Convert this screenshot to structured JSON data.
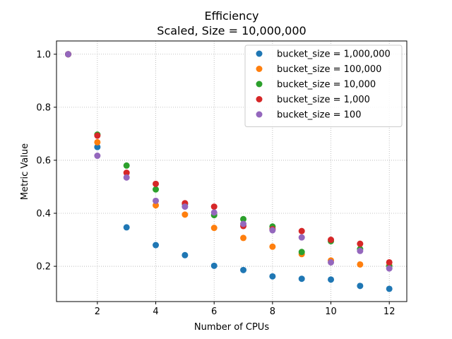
{
  "chart_data": {
    "type": "scatter",
    "title": "Efficiency",
    "subtitle": "Scaled, Size = 10,000,000",
    "xlabel": "Number of CPUs",
    "ylabel": "Metric Value",
    "xlim": [
      0.6,
      12.6
    ],
    "ylim": [
      0.067,
      1.05
    ],
    "xticks": [
      2,
      4,
      6,
      8,
      10,
      12
    ],
    "yticks": [
      0.2,
      0.4,
      0.6,
      0.8,
      1.0
    ],
    "ytick_labels": [
      "0.2",
      "0.4",
      "0.6",
      "0.8",
      "1.0"
    ],
    "grid": true,
    "legend_position": "top-right",
    "x": [
      1,
      2,
      3,
      4,
      5,
      6,
      7,
      8,
      9,
      10,
      11,
      12
    ],
    "series": [
      {
        "name": "bucket_size = 1,000,000",
        "color": "#1f77b4",
        "values": [
          1.0,
          0.65,
          0.347,
          0.28,
          0.242,
          0.202,
          0.186,
          0.162,
          0.153,
          0.15,
          0.126,
          0.115
        ]
      },
      {
        "name": "bucket_size = 100,000",
        "color": "#ff7f0e",
        "values": [
          1.0,
          0.668,
          null,
          0.43,
          0.395,
          0.345,
          0.307,
          0.274,
          0.246,
          0.222,
          0.207,
          0.203
        ]
      },
      {
        "name": "bucket_size = 10,000",
        "color": "#2ca02c",
        "values": [
          1.0,
          0.697,
          0.58,
          0.49,
          0.435,
          0.393,
          0.378,
          0.35,
          0.254,
          0.295,
          0.265,
          0.2
        ]
      },
      {
        "name": "bucket_size = 1,000",
        "color": "#d62728",
        "values": [
          1.0,
          0.693,
          0.553,
          0.511,
          0.438,
          0.425,
          0.352,
          0.34,
          0.333,
          0.3,
          0.285,
          0.215
        ]
      },
      {
        "name": "bucket_size = 100",
        "color": "#9467bd",
        "values": [
          1.0,
          0.617,
          0.535,
          0.447,
          0.425,
          0.403,
          0.36,
          0.336,
          0.309,
          0.215,
          0.258,
          0.192
        ]
      }
    ]
  }
}
